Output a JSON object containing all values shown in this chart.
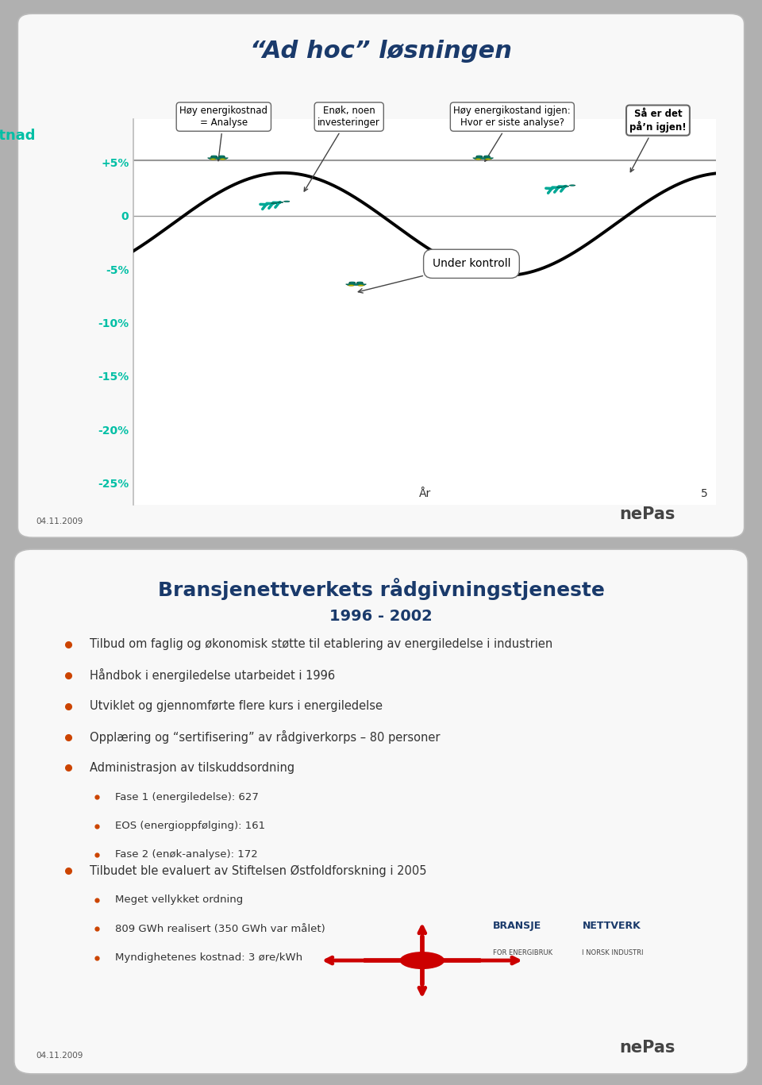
{
  "slide1": {
    "title": "“Ad hoc” løsningen",
    "title_color": "#1a3a6b",
    "bg_color": "#d0d0d0",
    "panel_bg": "#ffffff",
    "kostnad_color": "#00bfa5",
    "kostnad_label": "Kostnad",
    "xlabel": "År",
    "slide_number": "5",
    "footer_date": "04.11.2009",
    "callout1_text": "Høy energikostnad\n= Analyse",
    "callout2_text": "Enøk, noen\ninvesteringer",
    "callout3_text": "Høy energikostand igjen:\nHvor er siste analyse?",
    "callout4_text": "Så er det\npå’n igjen!",
    "callout5_text": "Under kontroll"
  },
  "slide2": {
    "title1": "Bransjenettverkets rådgivningstjeneste",
    "title2": "1996 - 2002",
    "title_color": "#1a3a6b",
    "bg_color": "#d0d0d0",
    "panel_bg": "#ffffff",
    "bullet_color": "#cc4400",
    "text_color": "#333333",
    "footer_date": "04.11.2009",
    "bullets": [
      "Tilbud om faglig og økonomisk støtte til etablering av energiledelse i industrien",
      "Håndbok i energiledelse utarbeidet i 1996",
      "Utviklet og gjennomførte flere kurs i energiledelse",
      "Opplæring og “sertifisering” av rådgiverkorps – 80 personer",
      "Administrasjon av tilskuddsordning",
      "Tilbudet ble evaluert av Stiftelsen Østfoldforskning i 2005"
    ],
    "sub_bullets_5": [
      "Fase 1 (energiledelse): 627",
      "EOS (energioppfølging): 161",
      "Fase 2 (enøk-analyse): 172"
    ],
    "sub_bullets_6": [
      "Meget vellykket ordning",
      "809 GWh realisert (350 GWh var målet)",
      "Myndighetenes kostnad: 3 øre/kWh"
    ]
  }
}
